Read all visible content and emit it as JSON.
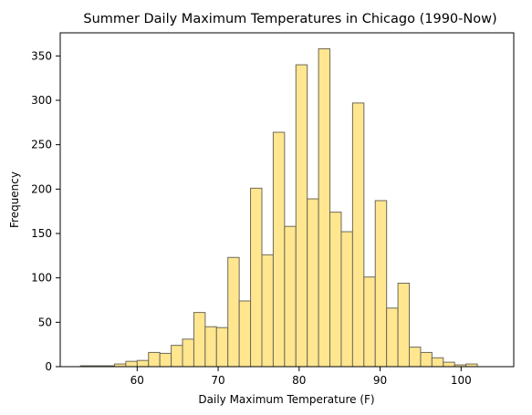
{
  "chart_data": {
    "type": "bar",
    "title": "Summer Daily Maximum Temperatures in Chicago (1990-Now)",
    "xlabel": "Daily Maximum Temperature (F)",
    "ylabel": "Frequency",
    "bin_start": 53,
    "bin_width": 1.4,
    "values": [
      1,
      1,
      1,
      3,
      6,
      7,
      16,
      15,
      24,
      31,
      61,
      45,
      44,
      123,
      74,
      201,
      126,
      264,
      158,
      340,
      189,
      358,
      174,
      152,
      297,
      101,
      187,
      66,
      94,
      22,
      16,
      10,
      5,
      2,
      3
    ],
    "xlim": [
      50.5,
      106.5
    ],
    "ylim": [
      0,
      376
    ],
    "xticks": [
      60,
      70,
      80,
      90,
      100
    ],
    "yticks": [
      0,
      50,
      100,
      150,
      200,
      250,
      300,
      350
    ],
    "bar_color": "#ffe68f",
    "edge_color": "#6e6a5a",
    "grid": false,
    "legend": "none"
  }
}
